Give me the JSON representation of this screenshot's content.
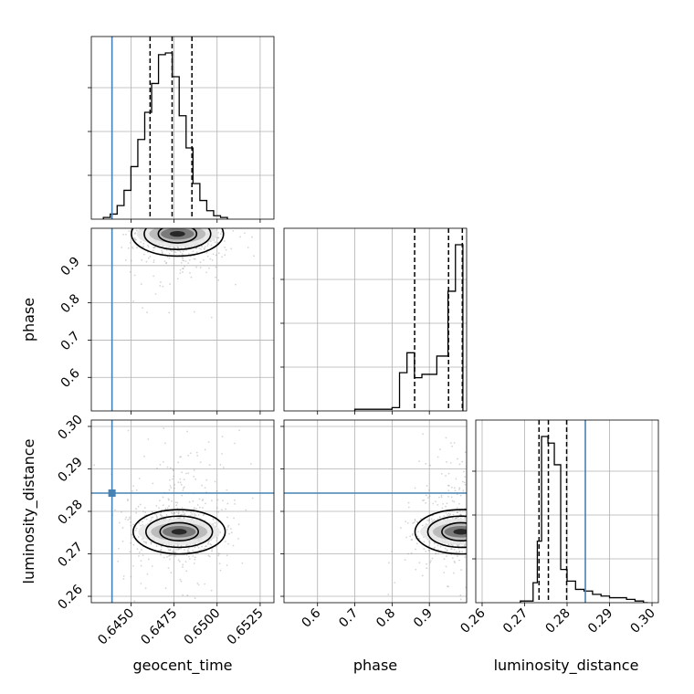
{
  "chart_data": {
    "type": "corner",
    "grid": true,
    "truth_color": "#4682b4",
    "parameters": [
      {
        "name": "geocent_time",
        "label": "geocent_time",
        "range": [
          0.6427,
          0.6533
        ],
        "ticks": [
          0.645,
          0.6475,
          0.65,
          0.6525
        ],
        "tick_labels": [
          "0.6450",
          "0.6475",
          "0.6500",
          "0.6525"
        ],
        "truth": 0.6439
      },
      {
        "name": "phase",
        "label": "phase",
        "range": [
          0.51,
          1.0
        ],
        "ticks": [
          0.6,
          0.7,
          0.8,
          0.9
        ],
        "tick_labels": [
          "0.6",
          "0.7",
          "0.8",
          "0.9"
        ],
        "truth": null
      },
      {
        "name": "luminosity_distance",
        "label": "luminosity_distance",
        "range": [
          0.2585,
          0.3015
        ],
        "ticks": [
          0.26,
          0.27,
          0.28,
          0.29,
          0.3
        ],
        "tick_labels": [
          "0.26",
          "0.27",
          "0.28",
          "0.29",
          "0.30"
        ],
        "truth": 0.2843
      }
    ],
    "histograms": [
      {
        "param": "geocent_time",
        "bin_edges": [
          0.6434,
          0.6438,
          0.6442,
          0.6446,
          0.645,
          0.6454,
          0.6458,
          0.6462,
          0.6466,
          0.647,
          0.6474,
          0.6478,
          0.6482,
          0.6486,
          0.649,
          0.6494,
          0.6498,
          0.6502,
          0.6506
        ],
        "counts": [
          1,
          3,
          8,
          17,
          31,
          47,
          63,
          80,
          97,
          98,
          84,
          61,
          42,
          21,
          11,
          5,
          2,
          1
        ],
        "quantiles": [
          0.64611,
          0.64739,
          0.64854
        ]
      },
      {
        "param": "phase",
        "bin_edges": [
          0.7,
          0.75,
          0.8,
          0.82,
          0.84,
          0.86,
          0.88,
          0.92,
          0.95,
          0.97,
          0.99
        ],
        "counts": [
          1,
          1,
          2,
          23,
          35,
          20,
          22,
          33,
          72,
          100
        ],
        "quantiles": [
          0.8605,
          0.9515,
          0.9885
        ]
      },
      {
        "param": "luminosity_distance",
        "bin_edges": [
          0.269,
          0.2705,
          0.272,
          0.273,
          0.274,
          0.2755,
          0.277,
          0.2785,
          0.28,
          0.282,
          0.284,
          0.286,
          0.288,
          0.29,
          0.292,
          0.294,
          0.296,
          0.298,
          0.299
        ],
        "counts": [
          1,
          1,
          12,
          37,
          100,
          96,
          83,
          20,
          13,
          8,
          7,
          5,
          4,
          3,
          3,
          2,
          1,
          0
        ],
        "quantiles": [
          0.2734,
          0.2756,
          0.2799
        ]
      }
    ],
    "panels_2d": [
      {
        "x": "geocent_time",
        "y": "phase",
        "peak": [
          0.6477,
          0.985
        ],
        "truth_x": 0.6439
      },
      {
        "x": "geocent_time",
        "y": "luminosity_distance",
        "peak": [
          0.6478,
          0.2752
        ],
        "truth_x": 0.6439,
        "truth_y": 0.2843
      },
      {
        "x": "phase",
        "y": "luminosity_distance",
        "peak": [
          0.985,
          0.2752
        ],
        "truth_y": 0.2843
      }
    ]
  }
}
